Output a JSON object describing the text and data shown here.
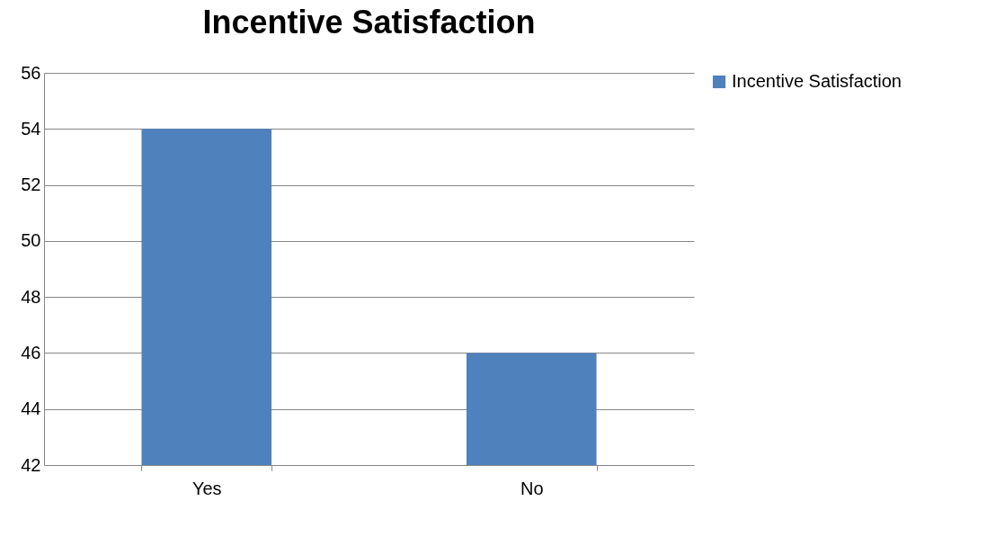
{
  "chart_data": {
    "type": "bar",
    "title": "Incentive Satisfaction",
    "categories": [
      "Yes",
      "No"
    ],
    "series": [
      {
        "name": "Incentive Satisfaction",
        "color": "#4f81bd",
        "values": [
          54,
          46
        ]
      }
    ],
    "ylim": [
      42,
      56
    ],
    "yticks": [
      42,
      44,
      46,
      48,
      50,
      52,
      54,
      56
    ],
    "grid": "y",
    "legend": "right"
  }
}
